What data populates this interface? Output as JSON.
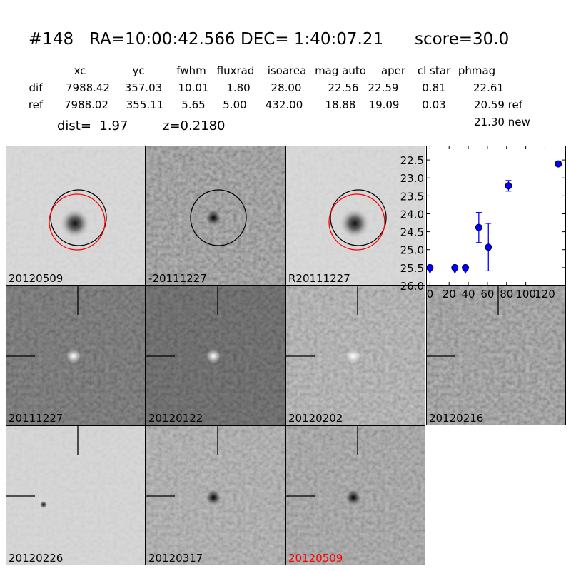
{
  "title": "#148   RA=10:00:42.566 DEC= 1:40:07.21      score=30.0",
  "table": {
    "headers": [
      "xc",
      "yc",
      "fwhm",
      "fluxrad",
      "isoarea",
      "mag auto",
      "aper",
      "cl star",
      "phmag"
    ],
    "rows": [
      {
        "label": "dif",
        "values": [
          "7988.42",
          "357.03",
          "10.01",
          "1.80",
          "28.00",
          "22.56",
          "22.59",
          "0.81"
        ],
        "phmag": "22.61"
      },
      {
        "label": "ref",
        "values": [
          "7988.02",
          "355.11",
          "5.65",
          "5.00",
          "432.00",
          "18.88",
          "19.09",
          "0.03"
        ],
        "phmag": "20.59 ref"
      }
    ],
    "extra": "21.30 new"
  },
  "dist": "dist=  1.97",
  "z": "z=0.2180",
  "stamps": [
    {
      "label": "20120509",
      "label_color": "#000000"
    },
    {
      "label": "-20111227",
      "label_color": "#000000"
    },
    {
      "label": "R20111227",
      "label_color": "#000000"
    },
    {
      "label": "20111227",
      "label_color": "#000000"
    },
    {
      "label": "20120122",
      "label_color": "#000000"
    },
    {
      "label": "20120202",
      "label_color": "#000000"
    },
    {
      "label": "20120216",
      "label_color": "#000000"
    },
    {
      "label": "20120226",
      "label_color": "#000000"
    },
    {
      "label": "20120317",
      "label_color": "#000000"
    },
    {
      "label": "20120509",
      "label_color": "#ff0000"
    }
  ],
  "chart_data": {
    "type": "scatter",
    "xlim": [
      -4,
      142
    ],
    "ylim": [
      26.0,
      22.1
    ],
    "y_inverted": true,
    "xticks": [
      "0",
      "20",
      "40",
      "60",
      "80",
      "100",
      "120"
    ],
    "yticks": [
      "22.5",
      "23.0",
      "23.5",
      "24.0",
      "24.5",
      "25.0",
      "25.5",
      "26.0"
    ],
    "color": "#0000ff",
    "points": [
      {
        "x": 0,
        "y": 25.5,
        "upper_limit": true
      },
      {
        "x": 26,
        "y": 25.5,
        "upper_limit": true
      },
      {
        "x": 37,
        "y": 25.5,
        "upper_limit": true
      },
      {
        "x": 51,
        "y": 24.38,
        "err": 0.42
      },
      {
        "x": 61,
        "y": 24.93,
        "err": 0.66
      },
      {
        "x": 82,
        "y": 23.22,
        "err": 0.15
      },
      {
        "x": 134,
        "y": 22.61,
        "err": 0.06
      }
    ]
  }
}
